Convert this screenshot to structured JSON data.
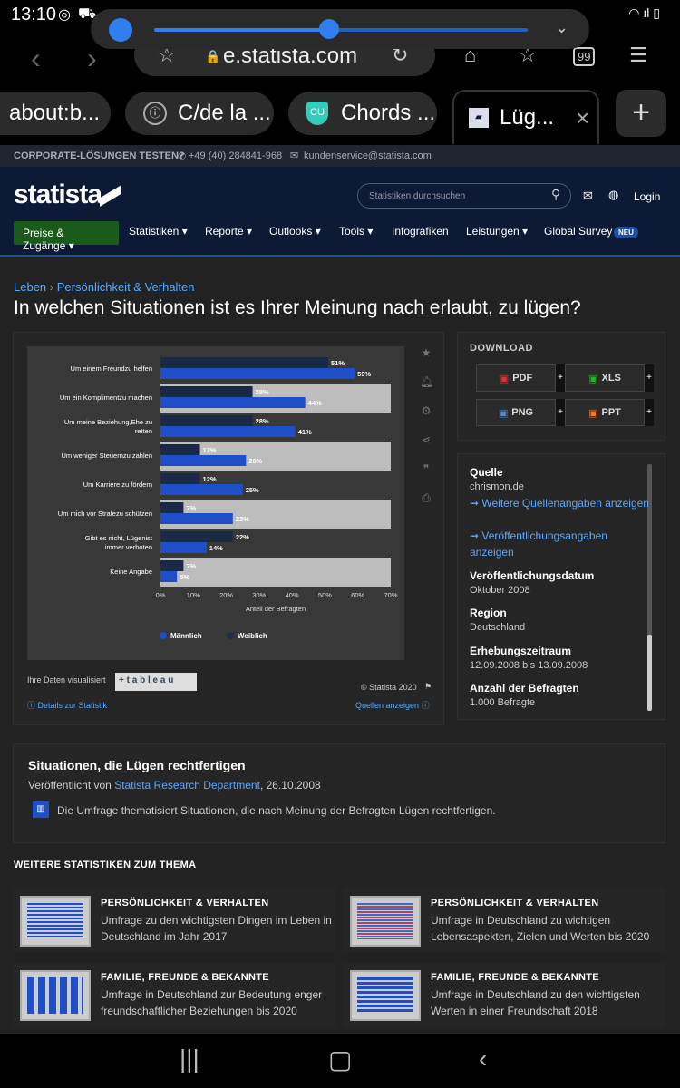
{
  "status": {
    "time": "13:10",
    "right": "◠ ıl ▯"
  },
  "media": {
    "chevron": "⌄"
  },
  "browser": {
    "url": "e.statista.com",
    "tabs": [
      "about:b...",
      "C/de la ...",
      "Chords ...",
      "Lüg..."
    ],
    "tab_icons": [
      "ⓘ",
      "CU",
      "▰"
    ],
    "tab_count": "99"
  },
  "topbar": {
    "cta": "CORPORATE-LÖSUNGEN TESTEN?",
    "phone": "+49 (40) 284841-968",
    "email": "kundenservice@statista.com"
  },
  "header": {
    "logo": "statista",
    "search_placeholder": "Statistiken durchsuchen",
    "login": "Login",
    "menu": [
      "Preise & Zugänge",
      "Statistiken",
      "Reporte",
      "Outlooks",
      "Tools",
      "Infografiken",
      "Leistungen",
      "Global Survey"
    ],
    "badge": "NEU"
  },
  "breadcrumb": {
    "a": "Leben",
    "sep": "›",
    "b": "Persönlichkeit & Verhalten"
  },
  "page_title": "In welchen Situationen ist es Ihrer Meinung nach erlaubt, zu lügen?",
  "chart_data": {
    "type": "bar",
    "orientation": "horizontal",
    "categories": [
      "Um einem Freundzu helfen",
      "Um ein Komplimentzu machen",
      "Um meine Beziehung,Ehe zu retten",
      "Um weniger Steuernzu zahlen",
      "Um Karriere zu fördern",
      "Um mich vor Strafezu schützen",
      "Gibt es nicht, Lügenist immer verboten",
      "Keine Angabe"
    ],
    "series": [
      {
        "name": "Männlich",
        "color": "#1f4fc8",
        "values": [
          59,
          44,
          41,
          26,
          25,
          22,
          14,
          5
        ]
      },
      {
        "name": "Weiblich",
        "color": "#1a2a44",
        "values": [
          51,
          28,
          28,
          12,
          12,
          7,
          22,
          7
        ]
      }
    ],
    "x_ticks": [
      "0%",
      "10%",
      "20%",
      "30%",
      "40%",
      "50%",
      "60%",
      "70%"
    ],
    "xlabel": "Anteil der Befragten",
    "xlim": [
      0,
      70
    ],
    "legend": "bottom"
  },
  "chart_footer": {
    "visual": "Ihre Daten visualisiert",
    "tableau": "+ t a b l e a u",
    "copyright": "© Statista 2020",
    "details": "Details zur Statistik",
    "quellen": "Quellen anzeigen"
  },
  "download": {
    "title": "DOWNLOAD",
    "buttons": [
      "PDF",
      "XLS",
      "PNG",
      "PPT"
    ],
    "plus": "+"
  },
  "info": {
    "quelle_label": "Quelle",
    "quelle": "chrismon.de",
    "link1": "➞ Weitere Quellenangaben anzeigen",
    "link2": "➞ Veröffentlichungsangaben anzeigen",
    "datum_label": "Veröffentlichungsdatum",
    "datum": "Oktober 2008",
    "region_label": "Region",
    "region": "Deutschland",
    "zeitraum_label": "Erhebungszeitraum",
    "zeitraum": "12.09.2008 bis 13.09.2008",
    "anzahl_label": "Anzahl der Befragten",
    "anzahl": "1.000 Befragte"
  },
  "survey": {
    "title": "Situationen, die Lügen rechtfertigen",
    "pub_prefix": "Veröffentlicht von",
    "pub_by": "Statista Research Department",
    "pub_date": ", 26.10.2008",
    "desc": "Die Umfrage thematisiert Situationen, die nach Meinung der Befragten Lügen rechtfertigen."
  },
  "more": {
    "title": "WEITERE STATISTIKEN ZUM THEMA",
    "cards": [
      {
        "cat": "PERSÖNLICHKEIT & VERHALTEN",
        "text": "Umfrage zu den wichtigsten Dingen im Leben in Deutschland im Jahr 2017"
      },
      {
        "cat": "PERSÖNLICHKEIT & VERHALTEN",
        "text": "Umfrage in Deutschland zu wichtigen Lebensaspekten, Zielen und Werten bis 2020"
      },
      {
        "cat": "FAMILIE, FREUNDE & BEKANNTE",
        "text": "Umfrage in Deutschland zur Bedeutung enger freundschaftlicher Beziehungen bis 2020"
      },
      {
        "cat": "FAMILIE, FREUNDE & BEKANNTE",
        "text": "Umfrage in Deutschland zu den wichtigsten Werten in einer Freundschaft 2018"
      }
    ]
  }
}
